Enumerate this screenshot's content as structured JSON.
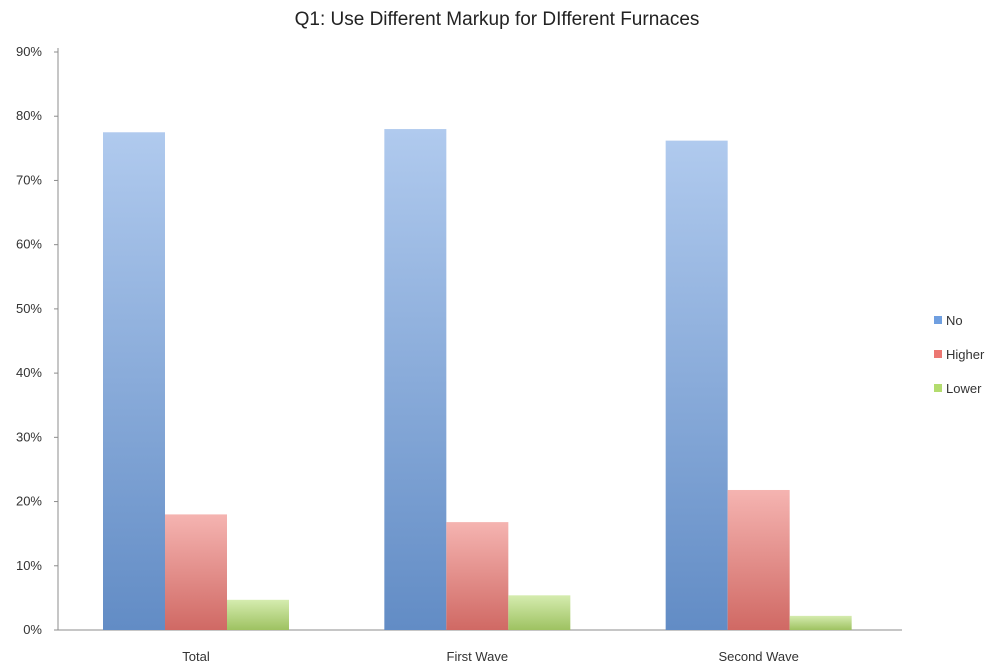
{
  "chart_data": {
    "type": "bar",
    "title": "Q1: Use Different Markup for DIfferent Furnaces",
    "xlabel": "",
    "ylabel": "",
    "categories": [
      "Total",
      "First Wave",
      "Second Wave"
    ],
    "series": [
      {
        "name": "No",
        "values": [
          77.5,
          78,
          76.2
        ],
        "color": "#6f9fe0"
      },
      {
        "name": "Higher",
        "values": [
          18,
          16.8,
          21.8
        ],
        "color": "#ec7772"
      },
      {
        "name": "Lower",
        "values": [
          4.7,
          5.4,
          2.2
        ],
        "color": "#b3dc6e"
      }
    ],
    "ylim": [
      0,
      90
    ],
    "yticks": [
      "0%",
      "10%",
      "20%",
      "30%",
      "40%",
      "50%",
      "60%",
      "70%",
      "80%",
      "90%"
    ],
    "grid": false,
    "legend_position": "right"
  }
}
